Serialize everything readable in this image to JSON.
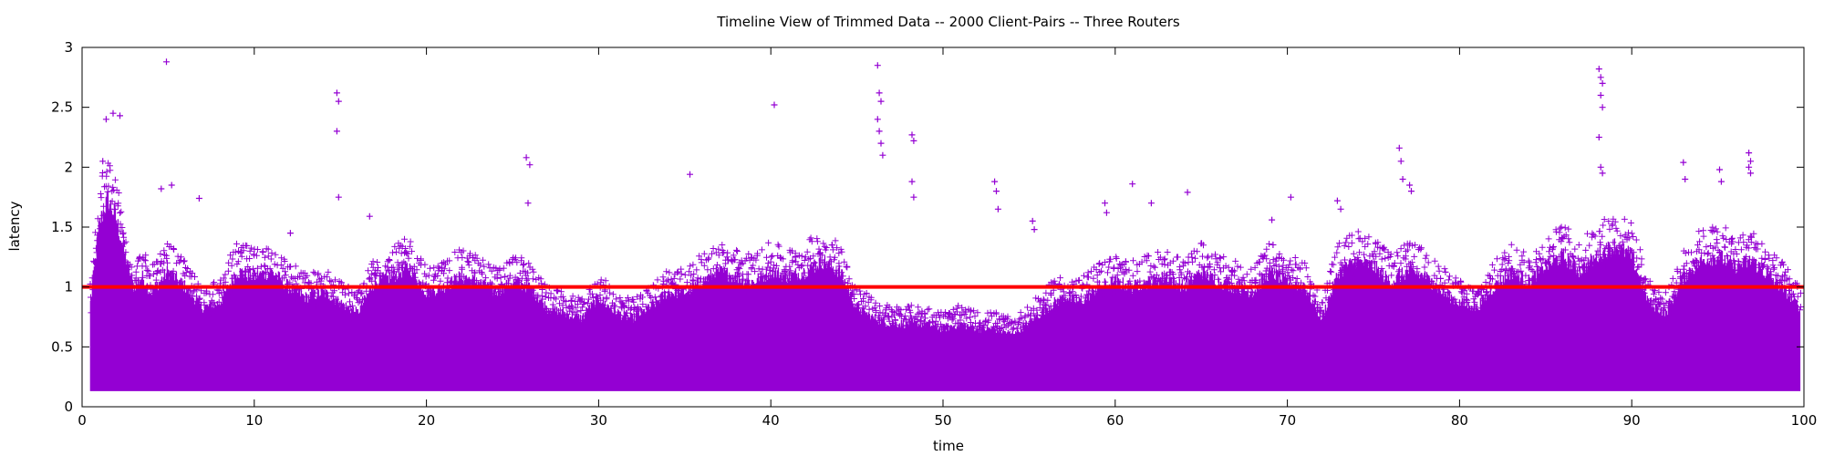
{
  "chart_data": {
    "type": "scatter",
    "title": "Timeline View of Trimmed Data -- 2000 Client-Pairs -- Three Routers",
    "xlabel": "time",
    "ylabel": "latency",
    "xlim": [
      0,
      100
    ],
    "ylim": [
      0,
      3
    ],
    "x_ticks": [
      "0",
      "10",
      "20",
      "30",
      "40",
      "50",
      "60",
      "70",
      "80",
      "90",
      "100"
    ],
    "y_ticks": [
      "0",
      "0.5",
      "1",
      "1.5",
      "2",
      "2.5",
      "3"
    ],
    "marker": "+",
    "series_color": "#9400d3",
    "reference_line": {
      "y": 1.0,
      "color": "#ff0000"
    },
    "grid": false,
    "latency_min": 0.13,
    "envelope": {
      "x": [
        0.5,
        1,
        1.5,
        2,
        2.5,
        3,
        3.5,
        4,
        5,
        6,
        7,
        8,
        9,
        10,
        11,
        12,
        13,
        14,
        15,
        16,
        17,
        18,
        19,
        20,
        21,
        22,
        23,
        24,
        25,
        26,
        27,
        28,
        29,
        30,
        31,
        32,
        33,
        34,
        35,
        36,
        37,
        38,
        39,
        40,
        41,
        42,
        43,
        44,
        45,
        46,
        47,
        48,
        49,
        50,
        51,
        52,
        53,
        54,
        55,
        56,
        57,
        58,
        59,
        60,
        61,
        62,
        63,
        64,
        65,
        66,
        67,
        68,
        69,
        70,
        71,
        72,
        73,
        74,
        75,
        76,
        77,
        78,
        79,
        80,
        81,
        82,
        83,
        84,
        85,
        86,
        87,
        88,
        89,
        90,
        91,
        92,
        93,
        94,
        95,
        96,
        97,
        98,
        99,
        99.8
      ],
      "upper": [
        1.0,
        1.75,
        2.0,
        1.8,
        1.45,
        1.15,
        1.25,
        1.1,
        1.3,
        1.15,
        0.95,
        1.0,
        1.3,
        1.25,
        1.3,
        1.15,
        1.05,
        1.1,
        1.0,
        0.9,
        1.2,
        1.25,
        1.35,
        1.1,
        1.15,
        1.25,
        1.2,
        1.1,
        1.2,
        1.15,
        0.95,
        0.9,
        0.85,
        1.05,
        0.9,
        0.85,
        0.95,
        1.1,
        1.1,
        1.2,
        1.3,
        1.25,
        1.2,
        1.3,
        1.25,
        1.3,
        1.4,
        1.3,
        0.95,
        0.85,
        0.8,
        0.8,
        0.8,
        0.75,
        0.8,
        0.75,
        0.75,
        0.7,
        0.8,
        0.95,
        1.05,
        1.0,
        1.15,
        1.2,
        1.15,
        1.2,
        1.25,
        1.15,
        1.3,
        1.2,
        1.15,
        1.1,
        1.3,
        1.2,
        1.15,
        0.85,
        1.3,
        1.4,
        1.35,
        1.2,
        1.3,
        1.25,
        1.1,
        1.0,
        0.95,
        1.15,
        1.3,
        1.2,
        1.35,
        1.45,
        1.3,
        1.45,
        1.55,
        1.45,
        1.0,
        0.9,
        1.25,
        1.4,
        1.45,
        1.35,
        1.4,
        1.25,
        1.1,
        0.95
      ]
    },
    "outliers": {
      "x": [
        4.9,
        1.4,
        1.8,
        2.2,
        1.2,
        4.6,
        5.2,
        14.8,
        14.9,
        14.8,
        14.9,
        25.8,
        26.0,
        25.9,
        35.3,
        40.2,
        46.2,
        46.3,
        46.4,
        46.2,
        46.3,
        46.4,
        46.5,
        48.2,
        48.3,
        48.2,
        48.3,
        53.0,
        53.1,
        53.2,
        55.2,
        55.3,
        59.4,
        59.5,
        61.0,
        62.1,
        64.2,
        69.1,
        70.2,
        72.9,
        73.1,
        76.5,
        76.6,
        76.7,
        77.1,
        77.2,
        88.1,
        88.2,
        88.3,
        88.2,
        88.3,
        88.1,
        88.2,
        88.3,
        93.0,
        93.1,
        95.1,
        95.2,
        96.8,
        96.9,
        96.8,
        96.9,
        6.8,
        16.7,
        12.1
      ],
      "y": [
        2.88,
        2.4,
        2.45,
        2.43,
        2.05,
        1.82,
        1.85,
        2.62,
        2.55,
        2.3,
        1.75,
        2.08,
        2.02,
        1.7,
        1.94,
        2.52,
        2.85,
        2.62,
        2.55,
        2.4,
        2.3,
        2.2,
        2.1,
        2.27,
        2.22,
        1.88,
        1.75,
        1.88,
        1.8,
        1.65,
        1.55,
        1.48,
        1.7,
        1.62,
        1.86,
        1.7,
        1.79,
        1.56,
        1.75,
        1.72,
        1.65,
        2.16,
        2.05,
        1.9,
        1.85,
        1.8,
        2.82,
        2.75,
        2.7,
        2.6,
        2.5,
        2.25,
        2.0,
        1.95,
        2.04,
        1.9,
        1.98,
        1.88,
        2.12,
        2.05,
        2.0,
        1.95,
        1.74,
        1.59,
        1.45
      ]
    }
  }
}
